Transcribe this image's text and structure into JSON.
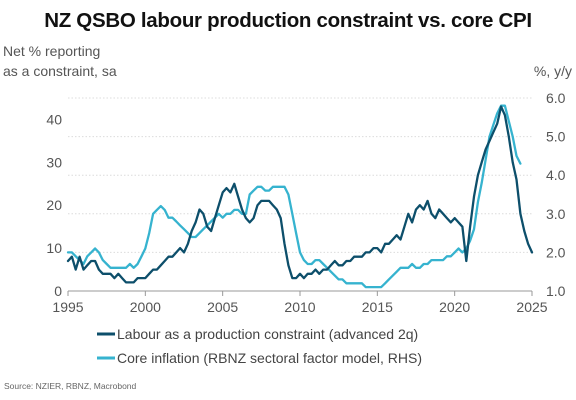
{
  "chart_data": {
    "type": "line",
    "title": "NZ QSBO labour production constraint vs. core CPI",
    "ylabel_left": [
      "Net % reporting",
      "as a constraint, sa"
    ],
    "ylabel_right": "%, y/y",
    "source": "Source: NZIER, RBNZ, Macrobond",
    "xlim": [
      1995,
      2025
    ],
    "ylim_left": [
      0,
      45
    ],
    "ylim_right": [
      1.0,
      6.0
    ],
    "xticks": [
      "1995",
      "2000",
      "2005",
      "2010",
      "2015",
      "2020",
      "2025"
    ],
    "yticks_left": [
      "0",
      "10",
      "20",
      "30",
      "40"
    ],
    "yticks_right": [
      "1.0",
      "2.0",
      "3.0",
      "4.0",
      "5.0",
      "6.0"
    ],
    "grid": true,
    "legend_position": "bottom",
    "series": [
      {
        "name": "Labour as a production constraint (advanced 2q)",
        "axis": "left",
        "color": "#0d4f6b",
        "points": [
          [
            1995.0,
            7
          ],
          [
            1995.25,
            8
          ],
          [
            1995.5,
            5
          ],
          [
            1995.75,
            8
          ],
          [
            1996.0,
            5
          ],
          [
            1996.25,
            6
          ],
          [
            1996.5,
            7
          ],
          [
            1996.75,
            7
          ],
          [
            1997.0,
            5
          ],
          [
            1997.25,
            4
          ],
          [
            1997.5,
            4
          ],
          [
            1997.75,
            4
          ],
          [
            1998.0,
            3
          ],
          [
            1998.25,
            4
          ],
          [
            1998.5,
            3
          ],
          [
            1998.75,
            2
          ],
          [
            1999.0,
            2
          ],
          [
            1999.25,
            2
          ],
          [
            1999.5,
            3
          ],
          [
            1999.75,
            3
          ],
          [
            2000.0,
            3
          ],
          [
            2000.25,
            4
          ],
          [
            2000.5,
            5
          ],
          [
            2000.75,
            5
          ],
          [
            2001.0,
            6
          ],
          [
            2001.25,
            7
          ],
          [
            2001.5,
            8
          ],
          [
            2001.75,
            8
          ],
          [
            2002.0,
            9
          ],
          [
            2002.25,
            10
          ],
          [
            2002.5,
            9
          ],
          [
            2002.75,
            11
          ],
          [
            2003.0,
            14
          ],
          [
            2003.25,
            16
          ],
          [
            2003.5,
            19
          ],
          [
            2003.75,
            18
          ],
          [
            2004.0,
            15
          ],
          [
            2004.25,
            14
          ],
          [
            2004.5,
            17
          ],
          [
            2004.75,
            20
          ],
          [
            2005.0,
            23
          ],
          [
            2005.25,
            24
          ],
          [
            2005.5,
            23
          ],
          [
            2005.75,
            25
          ],
          [
            2006.0,
            22
          ],
          [
            2006.25,
            19
          ],
          [
            2006.5,
            17
          ],
          [
            2006.75,
            16
          ],
          [
            2007.0,
            17
          ],
          [
            2007.25,
            20
          ],
          [
            2007.5,
            21
          ],
          [
            2007.75,
            21
          ],
          [
            2008.0,
            21
          ],
          [
            2008.25,
            20
          ],
          [
            2008.5,
            19
          ],
          [
            2008.75,
            17
          ],
          [
            2009.0,
            11
          ],
          [
            2009.25,
            6
          ],
          [
            2009.5,
            3
          ],
          [
            2009.75,
            3
          ],
          [
            2010.0,
            4
          ],
          [
            2010.25,
            3
          ],
          [
            2010.5,
            4
          ],
          [
            2010.75,
            4
          ],
          [
            2011.0,
            5
          ],
          [
            2011.25,
            4
          ],
          [
            2011.5,
            5
          ],
          [
            2011.75,
            5
          ],
          [
            2012.0,
            6
          ],
          [
            2012.25,
            7
          ],
          [
            2012.5,
            6
          ],
          [
            2012.75,
            6
          ],
          [
            2013.0,
            7
          ],
          [
            2013.25,
            7
          ],
          [
            2013.5,
            8
          ],
          [
            2013.75,
            8
          ],
          [
            2014.0,
            8
          ],
          [
            2014.25,
            9
          ],
          [
            2014.5,
            9
          ],
          [
            2014.75,
            10
          ],
          [
            2015.0,
            10
          ],
          [
            2015.25,
            9
          ],
          [
            2015.5,
            11
          ],
          [
            2015.75,
            11
          ],
          [
            2016.0,
            12
          ],
          [
            2016.25,
            13
          ],
          [
            2016.5,
            12
          ],
          [
            2016.75,
            15
          ],
          [
            2017.0,
            18
          ],
          [
            2017.25,
            16
          ],
          [
            2017.5,
            19
          ],
          [
            2017.75,
            20
          ],
          [
            2018.0,
            19
          ],
          [
            2018.25,
            21
          ],
          [
            2018.5,
            18
          ],
          [
            2018.75,
            17
          ],
          [
            2019.0,
            19
          ],
          [
            2019.25,
            18
          ],
          [
            2019.5,
            17
          ],
          [
            2019.75,
            16
          ],
          [
            2020.0,
            17
          ],
          [
            2020.25,
            16
          ],
          [
            2020.5,
            15
          ],
          [
            2020.75,
            7
          ],
          [
            2021.0,
            15
          ],
          [
            2021.25,
            22
          ],
          [
            2021.5,
            27
          ],
          [
            2021.75,
            30
          ],
          [
            2022.0,
            33
          ],
          [
            2022.25,
            35
          ],
          [
            2022.5,
            37
          ],
          [
            2022.75,
            39
          ],
          [
            2023.0,
            43
          ],
          [
            2023.25,
            41
          ],
          [
            2023.5,
            36
          ],
          [
            2023.75,
            30
          ],
          [
            2024.0,
            26
          ],
          [
            2024.25,
            18
          ],
          [
            2024.5,
            14
          ],
          [
            2024.75,
            11
          ],
          [
            2025.0,
            9
          ]
        ]
      },
      {
        "name": "Core inflation (RBNZ sectoral factor model, RHS)",
        "axis": "right",
        "color": "#36b3cf",
        "points": [
          [
            1995.0,
            2.0
          ],
          [
            1995.25,
            2.0
          ],
          [
            1995.5,
            1.9
          ],
          [
            1995.75,
            1.8
          ],
          [
            1996.0,
            1.7
          ],
          [
            1996.25,
            1.9
          ],
          [
            1996.5,
            2.0
          ],
          [
            1996.75,
            2.1
          ],
          [
            1997.0,
            2.0
          ],
          [
            1997.25,
            1.8
          ],
          [
            1997.5,
            1.7
          ],
          [
            1997.75,
            1.6
          ],
          [
            1998.0,
            1.6
          ],
          [
            1998.25,
            1.6
          ],
          [
            1998.5,
            1.6
          ],
          [
            1998.75,
            1.6
          ],
          [
            1999.0,
            1.7
          ],
          [
            1999.25,
            1.6
          ],
          [
            1999.5,
            1.7
          ],
          [
            1999.75,
            1.9
          ],
          [
            2000.0,
            2.1
          ],
          [
            2000.25,
            2.5
          ],
          [
            2000.5,
            3.0
          ],
          [
            2000.75,
            3.1
          ],
          [
            2001.0,
            3.2
          ],
          [
            2001.25,
            3.1
          ],
          [
            2001.5,
            2.9
          ],
          [
            2001.75,
            2.9
          ],
          [
            2002.0,
            2.8
          ],
          [
            2002.25,
            2.7
          ],
          [
            2002.5,
            2.6
          ],
          [
            2002.75,
            2.5
          ],
          [
            2003.0,
            2.4
          ],
          [
            2003.25,
            2.4
          ],
          [
            2003.5,
            2.5
          ],
          [
            2003.75,
            2.6
          ],
          [
            2004.0,
            2.7
          ],
          [
            2004.25,
            2.8
          ],
          [
            2004.5,
            2.9
          ],
          [
            2004.75,
            3.0
          ],
          [
            2005.0,
            2.9
          ],
          [
            2005.25,
            3.0
          ],
          [
            2005.5,
            3.0
          ],
          [
            2005.75,
            3.1
          ],
          [
            2006.0,
            3.1
          ],
          [
            2006.25,
            3.0
          ],
          [
            2006.5,
            3.0
          ],
          [
            2006.75,
            3.5
          ],
          [
            2007.0,
            3.6
          ],
          [
            2007.25,
            3.7
          ],
          [
            2007.5,
            3.7
          ],
          [
            2007.75,
            3.6
          ],
          [
            2008.0,
            3.6
          ],
          [
            2008.25,
            3.7
          ],
          [
            2008.5,
            3.7
          ],
          [
            2008.75,
            3.7
          ],
          [
            2009.0,
            3.7
          ],
          [
            2009.25,
            3.5
          ],
          [
            2009.5,
            3.0
          ],
          [
            2009.75,
            2.5
          ],
          [
            2010.0,
            2.0
          ],
          [
            2010.25,
            1.8
          ],
          [
            2010.5,
            1.7
          ],
          [
            2010.75,
            1.7
          ],
          [
            2011.0,
            1.8
          ],
          [
            2011.25,
            1.8
          ],
          [
            2011.5,
            1.7
          ],
          [
            2011.75,
            1.6
          ],
          [
            2012.0,
            1.5
          ],
          [
            2012.25,
            1.4
          ],
          [
            2012.5,
            1.3
          ],
          [
            2012.75,
            1.3
          ],
          [
            2013.0,
            1.2
          ],
          [
            2013.25,
            1.2
          ],
          [
            2013.5,
            1.2
          ],
          [
            2013.75,
            1.2
          ],
          [
            2014.0,
            1.2
          ],
          [
            2014.25,
            1.1
          ],
          [
            2014.5,
            1.1
          ],
          [
            2014.75,
            1.1
          ],
          [
            2015.0,
            1.1
          ],
          [
            2015.25,
            1.1
          ],
          [
            2015.5,
            1.2
          ],
          [
            2015.75,
            1.3
          ],
          [
            2016.0,
            1.4
          ],
          [
            2016.25,
            1.5
          ],
          [
            2016.5,
            1.6
          ],
          [
            2016.75,
            1.6
          ],
          [
            2017.0,
            1.6
          ],
          [
            2017.25,
            1.7
          ],
          [
            2017.5,
            1.6
          ],
          [
            2017.75,
            1.6
          ],
          [
            2018.0,
            1.7
          ],
          [
            2018.25,
            1.7
          ],
          [
            2018.5,
            1.8
          ],
          [
            2018.75,
            1.8
          ],
          [
            2019.0,
            1.8
          ],
          [
            2019.25,
            1.8
          ],
          [
            2019.5,
            1.9
          ],
          [
            2019.75,
            1.9
          ],
          [
            2020.0,
            2.0
          ],
          [
            2020.25,
            2.1
          ],
          [
            2020.5,
            2.0
          ],
          [
            2020.75,
            2.1
          ],
          [
            2021.0,
            2.3
          ],
          [
            2021.25,
            2.6
          ],
          [
            2021.5,
            3.3
          ],
          [
            2021.75,
            3.8
          ],
          [
            2022.0,
            4.4
          ],
          [
            2022.25,
            5.0
          ],
          [
            2022.5,
            5.3
          ],
          [
            2022.75,
            5.6
          ],
          [
            2023.0,
            5.8
          ],
          [
            2023.25,
            5.8
          ],
          [
            2023.5,
            5.4
          ],
          [
            2023.75,
            5.0
          ],
          [
            2024.0,
            4.5
          ],
          [
            2024.25,
            4.3
          ]
        ]
      }
    ]
  }
}
